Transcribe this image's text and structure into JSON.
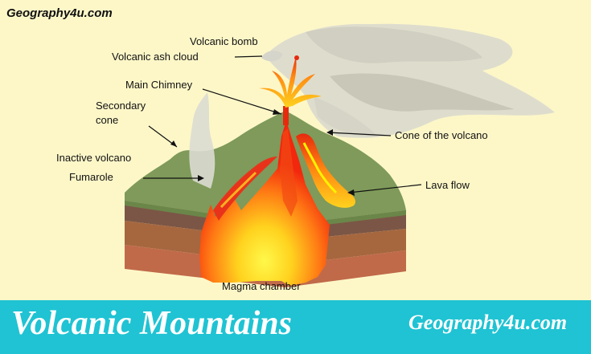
{
  "header": {
    "brand": "Geography4u.com"
  },
  "diagram": {
    "labels": {
      "volcanic_bomb": "Volcanic bomb",
      "volcanic_ash_cloud": "Volcanic ash cloud",
      "main_chimney": "Main Chimney",
      "secondary_cone_line1": "Secondary",
      "secondary_cone_line2": "cone",
      "inactive_volcano": "Inactive volcano",
      "fumarole": "Fumarole",
      "cone_of_the_volcano": "Cone of the volcano",
      "lava_flow": "Lava flow",
      "magma_chamber": "Magma chamber"
    }
  },
  "banner": {
    "title": "Volcanic Mountains",
    "site": "Geography4u.com"
  },
  "colors": {
    "background": "#fdf7c8",
    "banner": "#1fc3d3",
    "mountain": "#7f9a5a",
    "magma": "#f22a10",
    "magma_core": "#fff200",
    "soil_top": "#7b5646",
    "soil_mid": "#a6673f",
    "soil_bottom": "#c06a4a"
  }
}
